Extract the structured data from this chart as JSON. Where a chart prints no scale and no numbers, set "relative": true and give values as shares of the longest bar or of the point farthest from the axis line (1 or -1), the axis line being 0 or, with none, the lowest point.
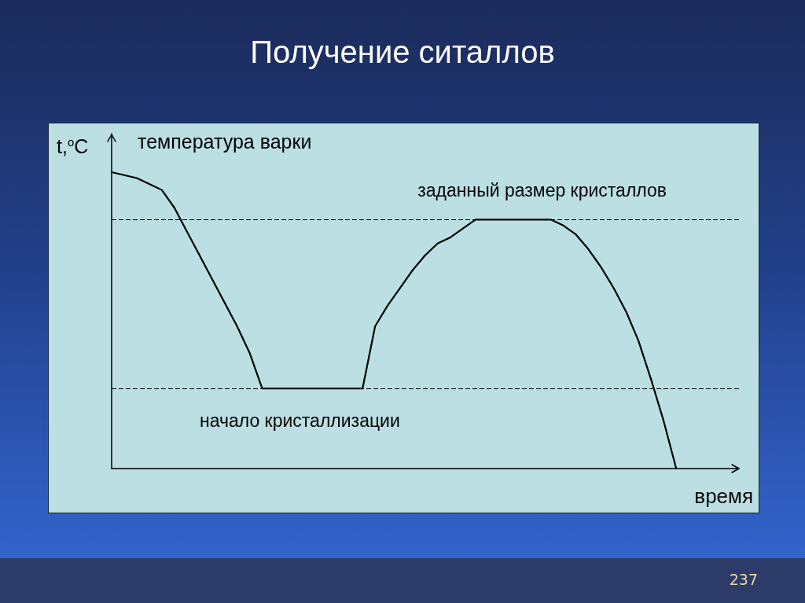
{
  "chart_data": {
    "type": "line",
    "title": "Получение ситаллов",
    "xlabel": "время",
    "ylabel": "t,$^{o}$C",
    "relative": true,
    "categories": [
      null,
      null,
      null,
      null,
      null,
      null,
      null,
      null,
      null,
      null,
      null,
      null,
      null,
      null,
      null,
      null,
      null,
      null,
      null,
      null,
      null,
      null,
      null,
      null,
      null,
      null,
      null,
      null,
      null,
      null,
      null,
      null,
      null,
      null,
      null,
      null,
      null,
      null,
      null,
      null,
      null,
      null,
      null,
      null,
      null,
      null,
      null,
      null,
      null,
      null,
      null
    ],
    "series": [
      {
        "color": "#000000",
        "values": [
          1,
          0.99,
          0.98,
          0.96,
          0.94,
          0.88,
          0.8,
          0.72,
          0.64,
          0.56,
          0.48,
          0.39,
          0.27,
          0.27,
          0.27,
          0.27,
          0.27,
          0.27,
          0.27,
          0.27,
          0.27,
          0.48,
          0.55,
          0.61,
          0.67,
          0.72,
          0.76,
          0.78,
          0.81,
          0.84,
          0.84,
          0.84,
          0.84,
          0.84,
          0.84,
          0.84,
          0.82,
          0.79,
          0.74,
          0.68,
          0.61,
          0.53,
          0.43,
          0.3,
          0.16,
          0,
          null,
          null,
          null,
          null,
          null
        ]
      }
    ],
    "ref_lines": [
      {
        "axis": "y",
        "value": 0.84,
        "label": "заданный размер кристаллов",
        "line_style": "dashed"
      },
      {
        "axis": "y",
        "value": 0.27,
        "label": "начало кристаллизации",
        "line_style": "dashed"
      }
    ],
    "annotations": [
      "температура варки",
      "237"
    ],
    "marker": "none",
    "line_style": "solid"
  }
}
